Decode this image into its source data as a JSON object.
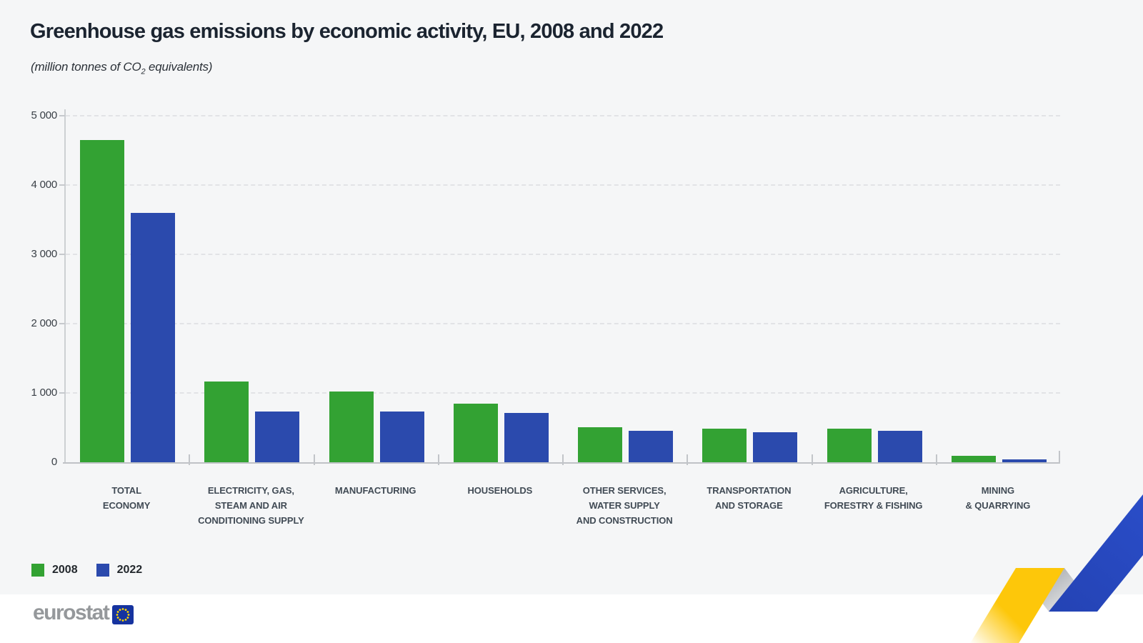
{
  "header": {
    "title": "Greenhouse gas emissions by economic activity, EU, 2008 and 2022",
    "subtitle_pre": "(million tonnes of CO",
    "subtitle_sub": "2",
    "subtitle_post": " equivalents)"
  },
  "legend": [
    {
      "label": "2008",
      "color": "#33a233"
    },
    {
      "label": "2022",
      "color": "#2b4aad"
    }
  ],
  "footer": {
    "logo_text": "eurostat"
  },
  "colors": {
    "panel_background": "#f5f6f7",
    "canvas_background": "#ffffff",
    "series_2008_green": "#33a233",
    "series_2022_blue": "#2b4aad",
    "ribbon_yellow": "#fdc70a",
    "ribbon_gray": "#9fa3a9",
    "ribbon_blue": "#2a4dc8",
    "flag_blue": "#16339f",
    "flag_star_yellow": "#ffd800"
  },
  "chart_data": {
    "type": "bar",
    "title": "Greenhouse gas emissions by economic activity, EU, 2008 and 2022",
    "unit": "million tonnes of CO2 equivalents",
    "xlabel": "",
    "ylabel": "",
    "ylim": [
      0,
      5000
    ],
    "yticks": [
      0,
      1000,
      2000,
      3000,
      4000,
      5000
    ],
    "ytick_labels": [
      "0",
      "1 000",
      "2 000",
      "3 000",
      "4 000",
      "5 000"
    ],
    "grid": "horizontal-dashed",
    "legend_position": "bottom-left",
    "categories": [
      [
        "TOTAL",
        "ECONOMY"
      ],
      [
        "ELECTRICITY, GAS,",
        "STEAM AND AIR",
        "CONDITIONING SUPPLY"
      ],
      [
        "MANUFACTURING"
      ],
      [
        "HOUSEHOLDS"
      ],
      [
        "OTHER SERVICES,",
        "WATER SUPPLY",
        "AND CONSTRUCTION"
      ],
      [
        "TRANSPORTATION",
        "AND STORAGE"
      ],
      [
        "AGRICULTURE,",
        "FORESTRY & FISHING"
      ],
      [
        "MINING",
        "& QUARRYING"
      ]
    ],
    "series": [
      {
        "name": "2008",
        "color": "#33a233",
        "values": [
          4650,
          1170,
          1020,
          850,
          500,
          480,
          480,
          90
        ]
      },
      {
        "name": "2022",
        "color": "#2b4aad",
        "values": [
          3600,
          730,
          730,
          710,
          450,
          430,
          455,
          45
        ]
      }
    ]
  }
}
